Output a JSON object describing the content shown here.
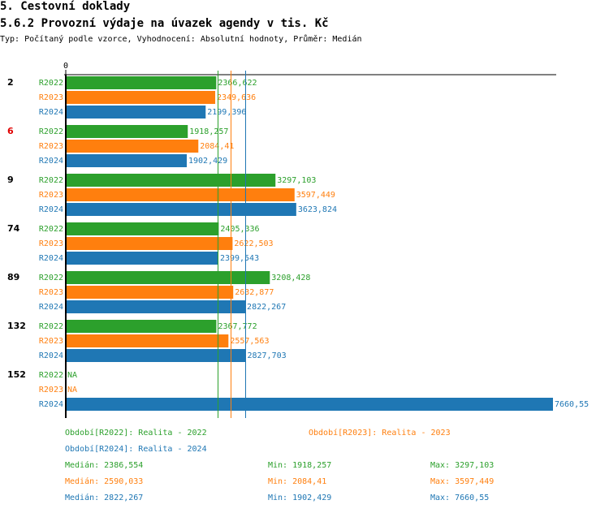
{
  "header": {
    "title": "5. Cestovní doklady",
    "subtitle": "5.6.2 Provozní výdaje na úvazek agendy v tis. Kč",
    "meta": "Typ: Počítaný podle vzorce, Vyhodnocení: Absolutní hodnoty, Průměr: Medián"
  },
  "chart_data": {
    "type": "bar",
    "orientation": "horizontal",
    "title": "5.6.2 Provozní výdaje na úvazek agendy v tis. Kč",
    "x_axis_tick": "0",
    "xlim": [
      0,
      7660.55
    ],
    "grid": false,
    "colors": {
      "R2022": "#2ca02c",
      "R2023": "#ff7f0e",
      "R2024": "#1f77b4"
    },
    "series_names": [
      "R2022",
      "R2023",
      "R2024"
    ],
    "groups": [
      {
        "label": "2",
        "highlight": false,
        "values": [
          {
            "series": "R2022",
            "value": 2366.622,
            "label": "2366,622"
          },
          {
            "series": "R2023",
            "value": 2349.636,
            "label": "2349,636"
          },
          {
            "series": "R2024",
            "value": 2199.396,
            "label": "2199,396"
          }
        ]
      },
      {
        "label": "6",
        "highlight": true,
        "values": [
          {
            "series": "R2022",
            "value": 1918.257,
            "label": "1918,257"
          },
          {
            "series": "R2023",
            "value": 2084.41,
            "label": "2084,41"
          },
          {
            "series": "R2024",
            "value": 1902.429,
            "label": "1902,429"
          }
        ]
      },
      {
        "label": "9",
        "highlight": false,
        "values": [
          {
            "series": "R2022",
            "value": 3297.103,
            "label": "3297,103"
          },
          {
            "series": "R2023",
            "value": 3597.449,
            "label": "3597,449"
          },
          {
            "series": "R2024",
            "value": 3623.824,
            "label": "3623,824"
          }
        ]
      },
      {
        "label": "74",
        "highlight": false,
        "values": [
          {
            "series": "R2022",
            "value": 2405.336,
            "label": "2405,336"
          },
          {
            "series": "R2023",
            "value": 2622.503,
            "label": "2622,503"
          },
          {
            "series": "R2024",
            "value": 2399.543,
            "label": "2399,543"
          }
        ]
      },
      {
        "label": "89",
        "highlight": false,
        "values": [
          {
            "series": "R2022",
            "value": 3208.428,
            "label": "3208,428"
          },
          {
            "series": "R2023",
            "value": 2632.877,
            "label": "2632,877"
          },
          {
            "series": "R2024",
            "value": 2822.267,
            "label": "2822,267"
          }
        ]
      },
      {
        "label": "132",
        "highlight": false,
        "values": [
          {
            "series": "R2022",
            "value": 2367.772,
            "label": "2367,772"
          },
          {
            "series": "R2023",
            "value": 2557.563,
            "label": "2557,563"
          },
          {
            "series": "R2024",
            "value": 2827.703,
            "label": "2827,703"
          }
        ]
      },
      {
        "label": "152",
        "highlight": false,
        "values": [
          {
            "series": "R2022",
            "value": null,
            "label": "NA"
          },
          {
            "series": "R2023",
            "value": null,
            "label": "NA"
          },
          {
            "series": "R2024",
            "value": 7660.55,
            "label": "7660,55"
          }
        ]
      }
    ],
    "medians": [
      {
        "series": "R2022",
        "value": 2386.554,
        "style": "dashed"
      },
      {
        "series": "R2023",
        "value": 2590.033,
        "style": "dashed"
      },
      {
        "series": "R2024",
        "value": 2822.267,
        "style": "solid"
      }
    ]
  },
  "legend": {
    "periods": [
      {
        "series": "R2022",
        "text": "Období[R2022]: Realita - 2022"
      },
      {
        "series": "R2023",
        "text": "Období[R2023]: Realita - 2023"
      },
      {
        "series": "R2024",
        "text": "Období[R2024]: Realita - 2024"
      }
    ],
    "stats": [
      {
        "series": "R2022",
        "median": "Medián: 2386,554",
        "min": "Min: 1918,257",
        "max": "Max: 3297,103"
      },
      {
        "series": "R2023",
        "median": "Medián: 2590,033",
        "min": "Min: 2084,41",
        "max": "Max: 3597,449"
      },
      {
        "series": "R2024",
        "median": "Medián: 2822,267",
        "min": "Min: 1902,429",
        "max": "Max: 7660,55"
      }
    ]
  }
}
